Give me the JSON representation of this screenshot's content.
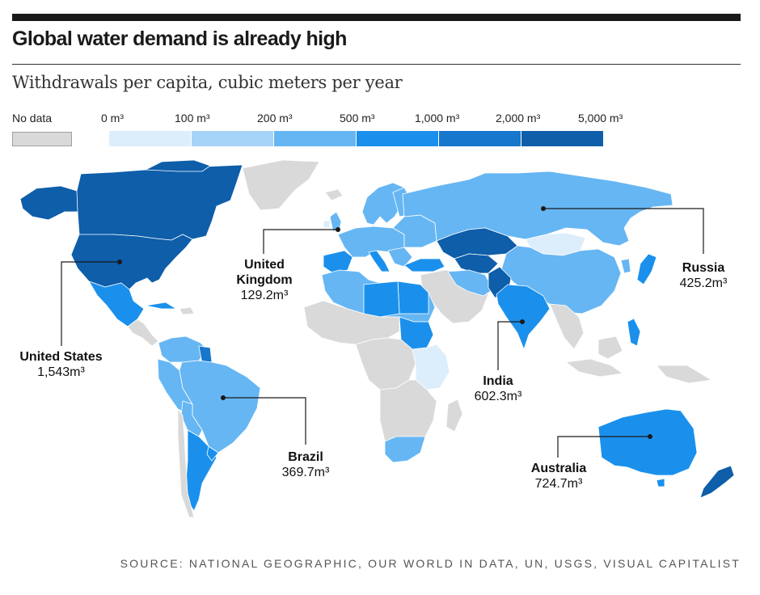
{
  "header": {
    "title": "Global water demand is already high",
    "subtitle": "Withdrawals per capita, cubic meters per year"
  },
  "legend": {
    "no_data_label": "No data",
    "no_data_color": "#d9d9d9",
    "breaks": [
      "0 m³",
      "100 m³",
      "200 m³",
      "500 m³",
      "1,000 m³",
      "2,000 m³",
      "5,000 m³"
    ],
    "colors": [
      "#dceefc",
      "#a6d3f8",
      "#66b6f3",
      "#1a90ec",
      "#1677cc",
      "#0e5ea9"
    ]
  },
  "callouts": {
    "united_states": {
      "name": "United States",
      "value": "1,543m³"
    },
    "united_kingdom": {
      "name_line1": "United",
      "name_line2": "Kingdom",
      "value": "129.2m³"
    },
    "russia": {
      "name": "Russia",
      "value": "425.2m³"
    },
    "india": {
      "name": "India",
      "value": "602.3m³"
    },
    "brazil": {
      "name": "Brazil",
      "value": "369.7m³"
    },
    "australia": {
      "name": "Australia",
      "value": "724.7m³"
    }
  },
  "source": "SOURCE: NATIONAL GEOGRAPHIC, OUR WORLD IN DATA, UN, USGS, VISUAL CAPITALIST"
}
